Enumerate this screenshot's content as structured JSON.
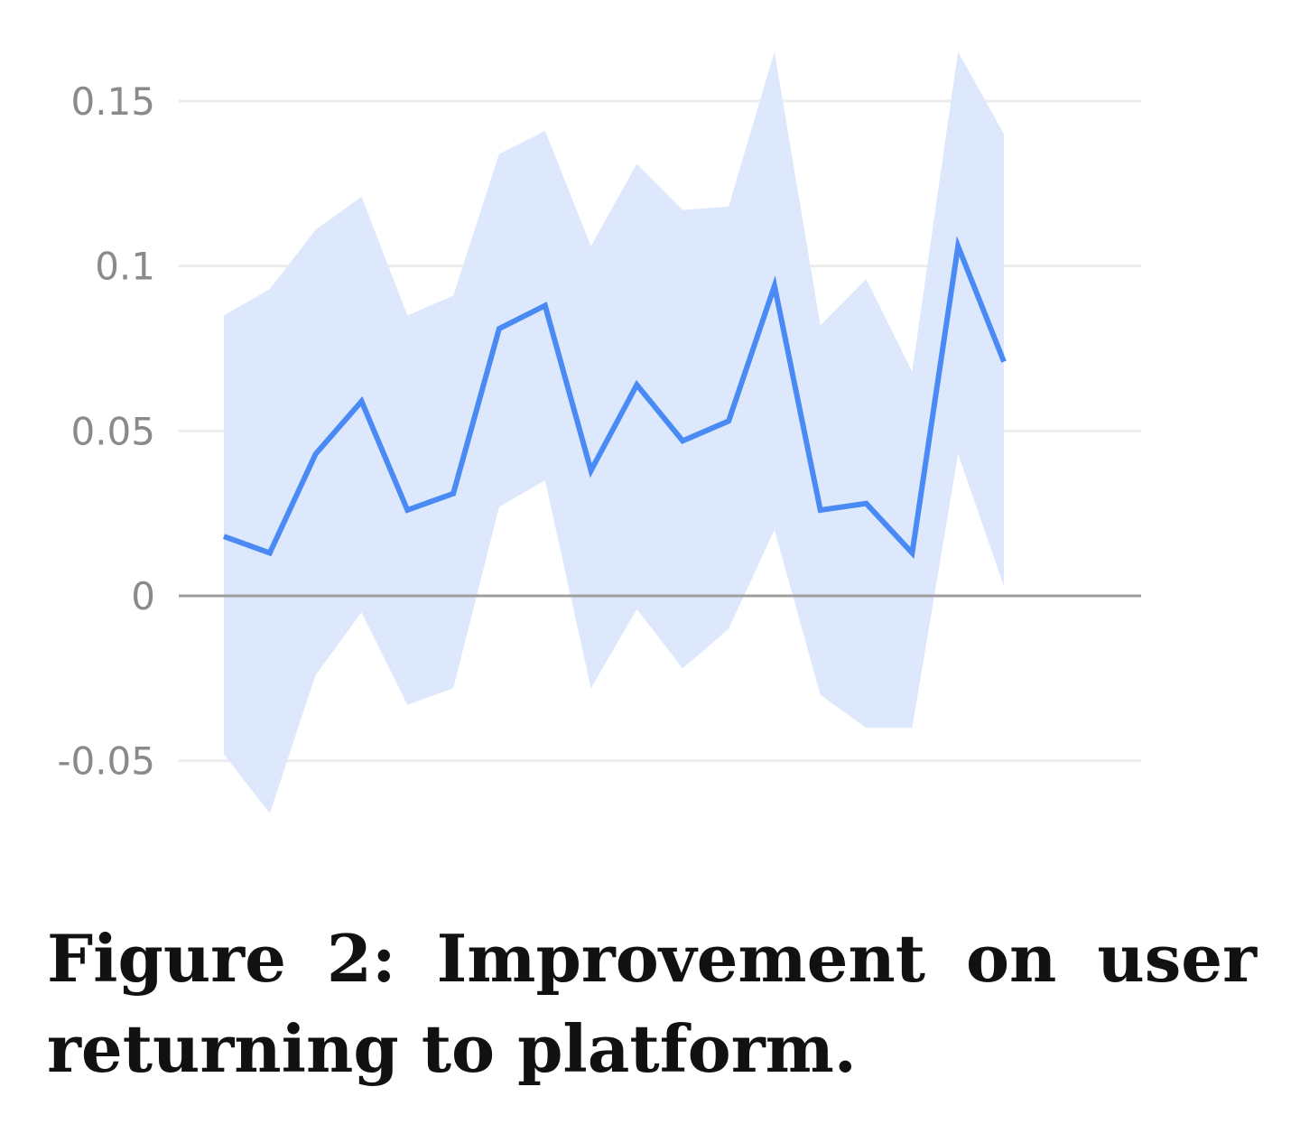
{
  "chart_data": {
    "type": "line",
    "title": "",
    "xlabel": "",
    "ylabel": "",
    "ylim": [
      -0.065,
      0.165
    ],
    "yticks": [
      0.15,
      0.1,
      0.05,
      0,
      -0.05
    ],
    "ytick_labels": [
      "0.15",
      "0.1",
      "0.05",
      "0",
      "-0.05"
    ],
    "grid": true,
    "legend": "none",
    "x": [
      1,
      2,
      3,
      4,
      5,
      6,
      7,
      8,
      9,
      10,
      11,
      12,
      13,
      14,
      15,
      16,
      17,
      18
    ],
    "series": [
      {
        "values": [
          0.018,
          0.013,
          0.043,
          0.059,
          0.026,
          0.031,
          0.081,
          0.088,
          0.038,
          0.064,
          0.047,
          0.053,
          0.094,
          0.026,
          0.028,
          0.013,
          0.106,
          0.071
        ],
        "lower": [
          -0.048,
          -0.066,
          -0.024,
          -0.005,
          -0.033,
          -0.028,
          0.027,
          0.035,
          -0.028,
          -0.004,
          -0.022,
          -0.01,
          0.02,
          -0.03,
          -0.04,
          -0.04,
          0.043,
          0.003
        ],
        "upper": [
          0.085,
          0.093,
          0.111,
          0.121,
          0.085,
          0.091,
          0.134,
          0.141,
          0.106,
          0.131,
          0.117,
          0.118,
          0.165,
          0.082,
          0.096,
          0.068,
          0.165,
          0.14
        ],
        "color": "#4a8af4",
        "band_color": "#dde8fc"
      }
    ],
    "colors": {
      "gridline": "#ececec",
      "zero_line": "#9e9e9e",
      "tick_text": "#8a8a8a"
    }
  },
  "caption": "Figure 2: Improvement on user returning to platform."
}
